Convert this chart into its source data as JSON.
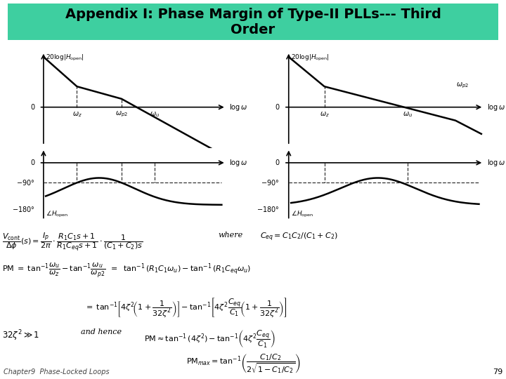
{
  "title": "Appendix I: Phase Margin of Type-II PLLs--- Third\nOrder",
  "title_bg": "#3ecfa0",
  "title_color": "#000000",
  "title_fontsize": 14,
  "bg_color": "#ffffff",
  "page_number": "79",
  "footer_text": "Chapter9  Phase-Locked Loops"
}
